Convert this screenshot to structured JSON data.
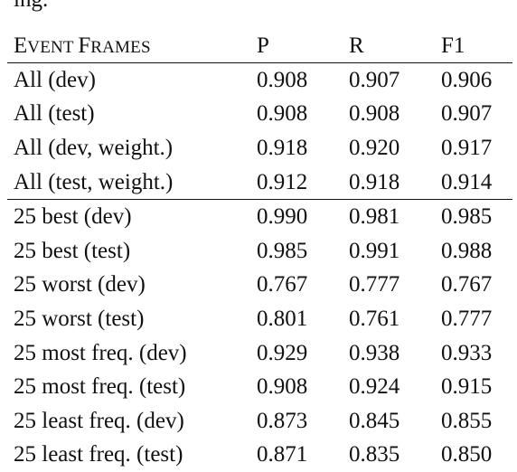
{
  "header_fragment": "ing.",
  "table": {
    "columns": {
      "event_frames": {
        "initial_E": "E",
        "rest_E": "VENT ",
        "initial_F": "F",
        "rest_F": "RAMES"
      },
      "p": "P",
      "r": "R",
      "f1": "F1"
    },
    "group_all": [
      {
        "label": "All (dev)",
        "p": "0.908",
        "r": "0.907",
        "f1": "0.906"
      },
      {
        "label": "All (test)",
        "p": "0.908",
        "r": "0.908",
        "f1": "0.907"
      },
      {
        "label": "All (dev, weight.)",
        "p": "0.918",
        "r": "0.920",
        "f1": "0.917"
      },
      {
        "label": "All (test, weight.)",
        "p": "0.912",
        "r": "0.918",
        "f1": "0.914"
      }
    ],
    "group_25": [
      {
        "label": "25 best (dev)",
        "p": "0.990",
        "r": "0.981",
        "f1": "0.985"
      },
      {
        "label": "25 best (test)",
        "p": "0.985",
        "r": "0.991",
        "f1": "0.988"
      },
      {
        "label": "25 worst (dev)",
        "p": "0.767",
        "r": "0.777",
        "f1": "0.767"
      },
      {
        "label": "25 worst (test)",
        "p": "0.801",
        "r": "0.761",
        "f1": "0.777"
      },
      {
        "label": "25 most freq. (dev)",
        "p": "0.929",
        "r": "0.938",
        "f1": "0.933"
      },
      {
        "label": "25 most freq. (test)",
        "p": "0.908",
        "r": "0.924",
        "f1": "0.915"
      },
      {
        "label": "25 least freq. (dev)",
        "p": "0.873",
        "r": "0.845",
        "f1": "0.855"
      },
      {
        "label": "25 least freq. (test)",
        "p": "0.871",
        "r": "0.835",
        "f1": "0.850"
      }
    ]
  }
}
